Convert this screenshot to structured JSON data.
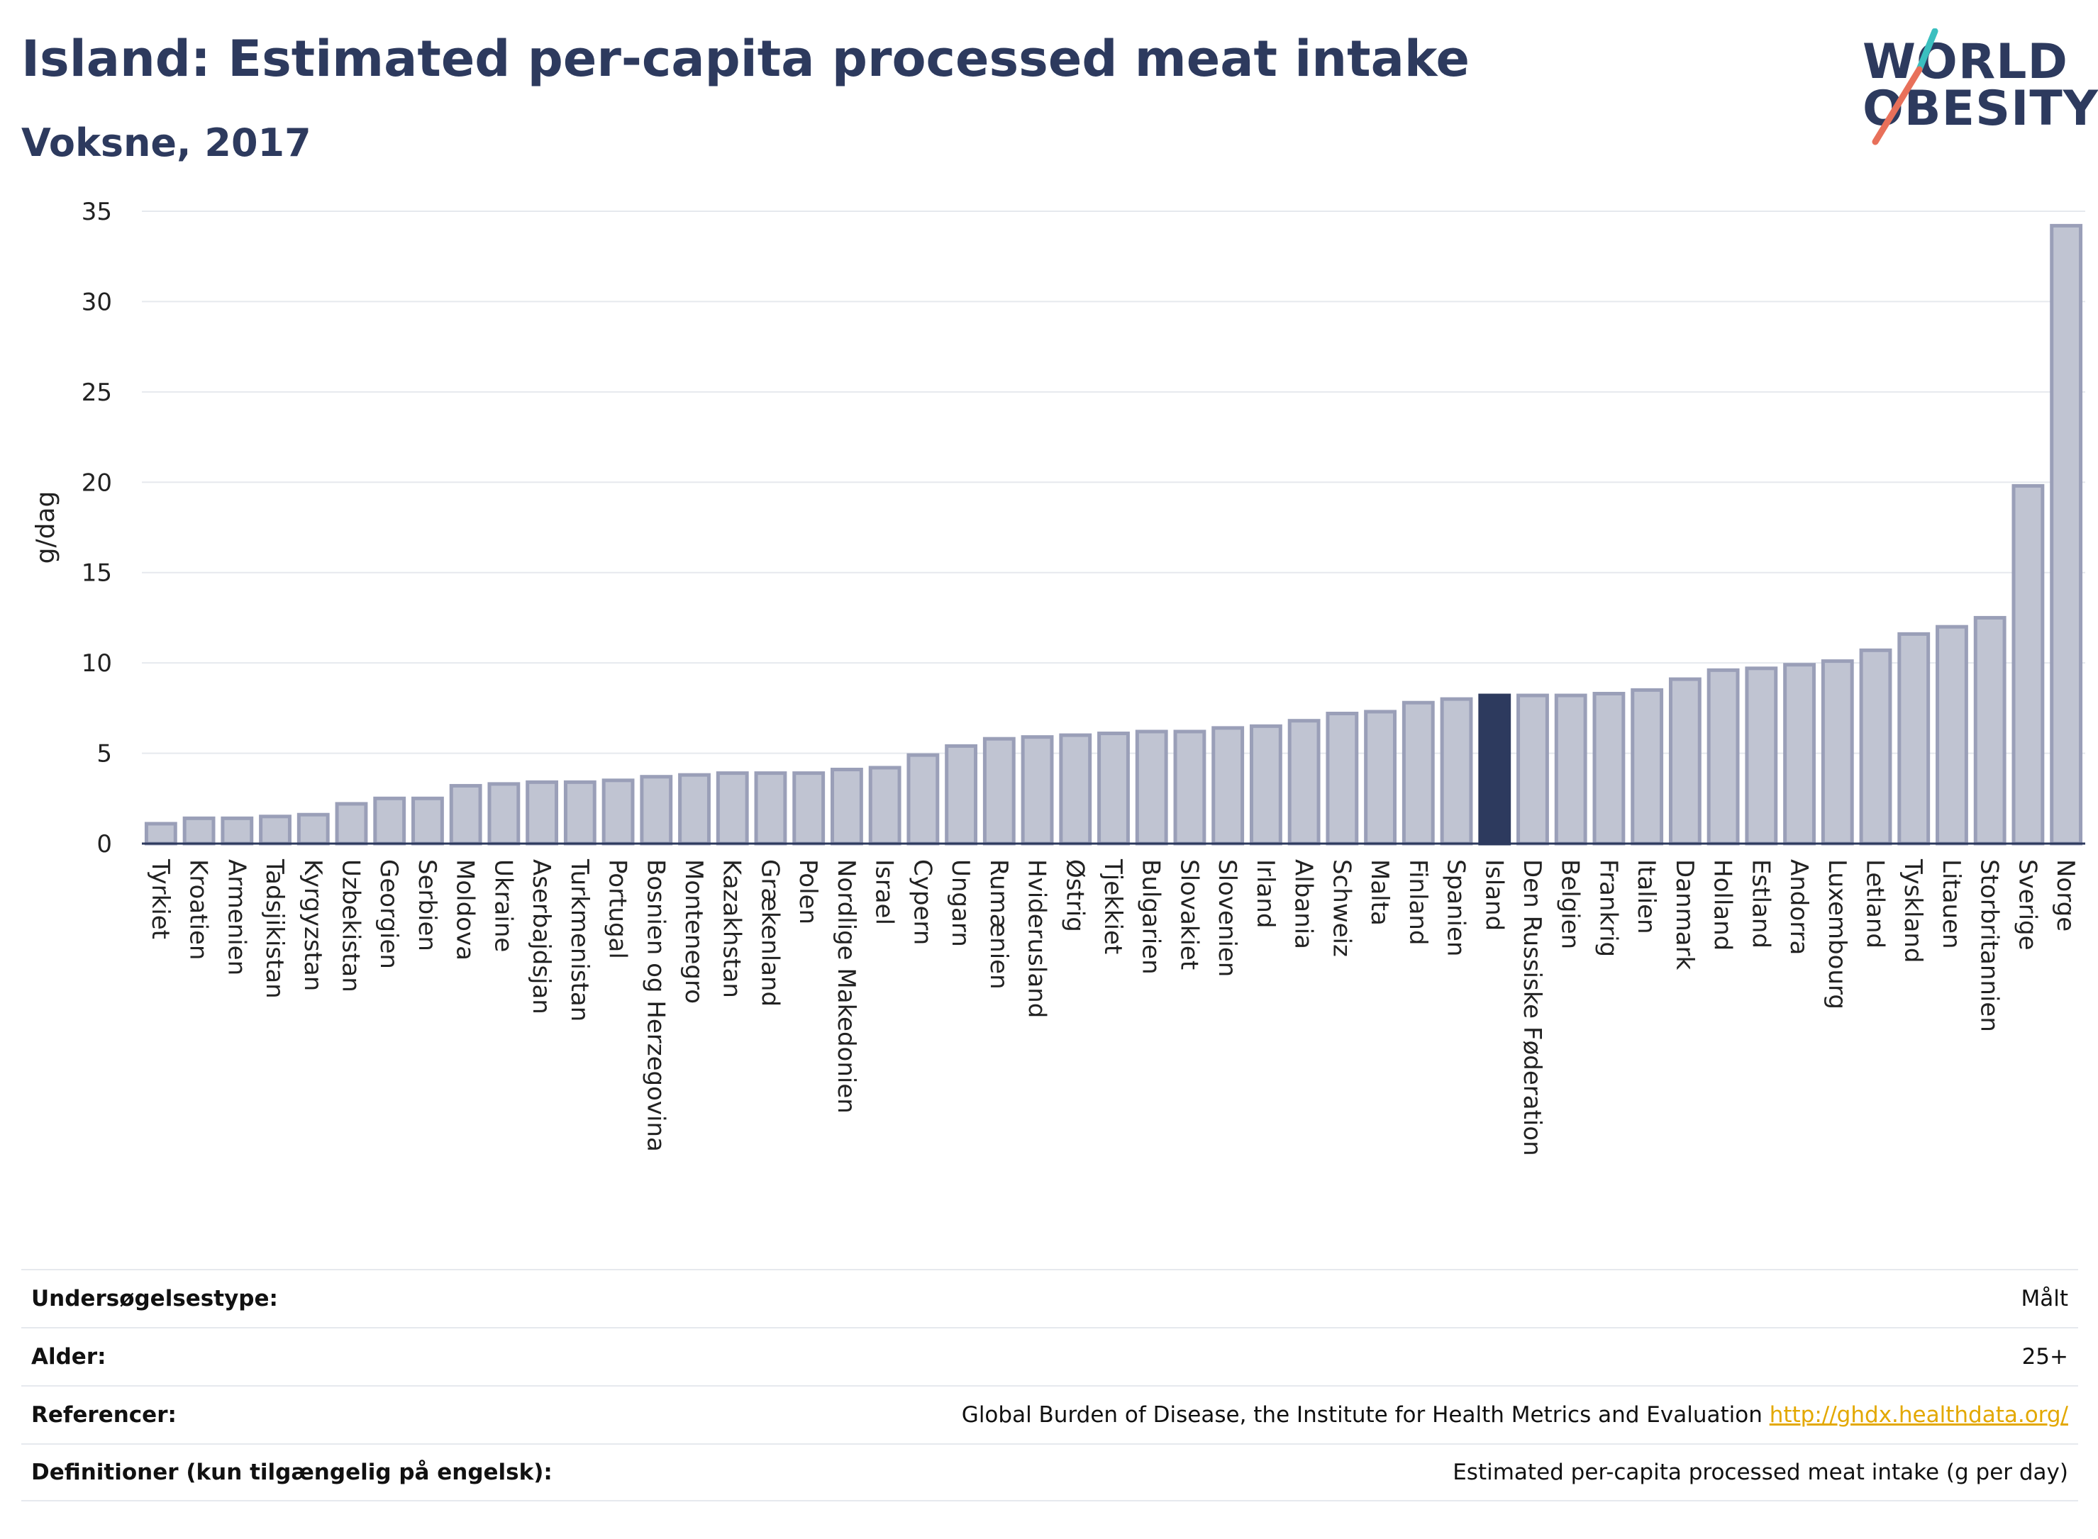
{
  "header": {
    "title": "Island: Estimated per-capita processed meat intake",
    "subtitle": "Voksne, 2017"
  },
  "logo": {
    "line1": "WORLD",
    "line2": "OBESITY",
    "accent_colors": [
      "#3bbfbf",
      "#e8705a"
    ]
  },
  "colors": {
    "bar_fill": "#c0c4d2",
    "bar_stroke": "#9a9fb8",
    "highlight": "#2d3a5e",
    "grid": "#e6e9ee",
    "axis": "#2d3a5e"
  },
  "chart_data": {
    "type": "bar",
    "ylabel": "g/dag",
    "ylim": [
      0,
      35
    ],
    "yticks": [
      0,
      5,
      10,
      15,
      20,
      25,
      30,
      35
    ],
    "grid": true,
    "highlight": "Island",
    "categories": [
      "Tyrkiet",
      "Kroatien",
      "Armenien",
      "Tadsjikistan",
      "Kyrgyzstan",
      "Uzbekistan",
      "Georgien",
      "Serbien",
      "Moldova",
      "Ukraine",
      "Aserbajdsjan",
      "Turkmenistan",
      "Portugal",
      "Bosnien og Herzegovina",
      "Montenegro",
      "Kazakhstan",
      "Grækenland",
      "Polen",
      "Nordlige Makedonien",
      "Israel",
      "Cypern",
      "Ungarn",
      "Rumænien",
      "Hviderusland",
      "Østrig",
      "Tjekkiet",
      "Bulgarien",
      "Slovakiet",
      "Slovenien",
      "Irland",
      "Albania",
      "Schweiz",
      "Malta",
      "Finland",
      "Spanien",
      "Island",
      "Den Russiske Føderation",
      "Belgien",
      "Frankrig",
      "Italien",
      "Danmark",
      "Holland",
      "Estland",
      "Andorra",
      "Luxembourg",
      "Letland",
      "Tyskland",
      "Litauen",
      "Storbritannien",
      "Sverige",
      "Norge"
    ],
    "values": [
      1.1,
      1.4,
      1.4,
      1.5,
      1.6,
      2.2,
      2.5,
      2.5,
      3.2,
      3.3,
      3.4,
      3.4,
      3.5,
      3.7,
      3.8,
      3.9,
      3.9,
      3.9,
      4.1,
      4.2,
      4.9,
      5.4,
      5.8,
      5.9,
      6.0,
      6.1,
      6.2,
      6.2,
      6.4,
      6.5,
      6.8,
      7.2,
      7.3,
      7.8,
      8.0,
      8.2,
      8.2,
      8.2,
      8.3,
      8.5,
      9.1,
      9.6,
      9.7,
      9.9,
      10.1,
      10.7,
      11.6,
      12.0,
      12.5,
      19.8,
      34.2
    ]
  },
  "info": [
    {
      "key": "Undersøgelsestype:",
      "value": "Målt"
    },
    {
      "key": "Alder:",
      "value": "25+"
    },
    {
      "key": "Referencer:",
      "value": "Global Burden of Disease, the Institute for Health Metrics and Evaluation",
      "link": "http://ghdx.healthdata.org/"
    },
    {
      "key": "Definitioner (kun tilgængelig på engelsk):",
      "value": "Estimated per-capita processed meat intake (g per day)"
    }
  ]
}
